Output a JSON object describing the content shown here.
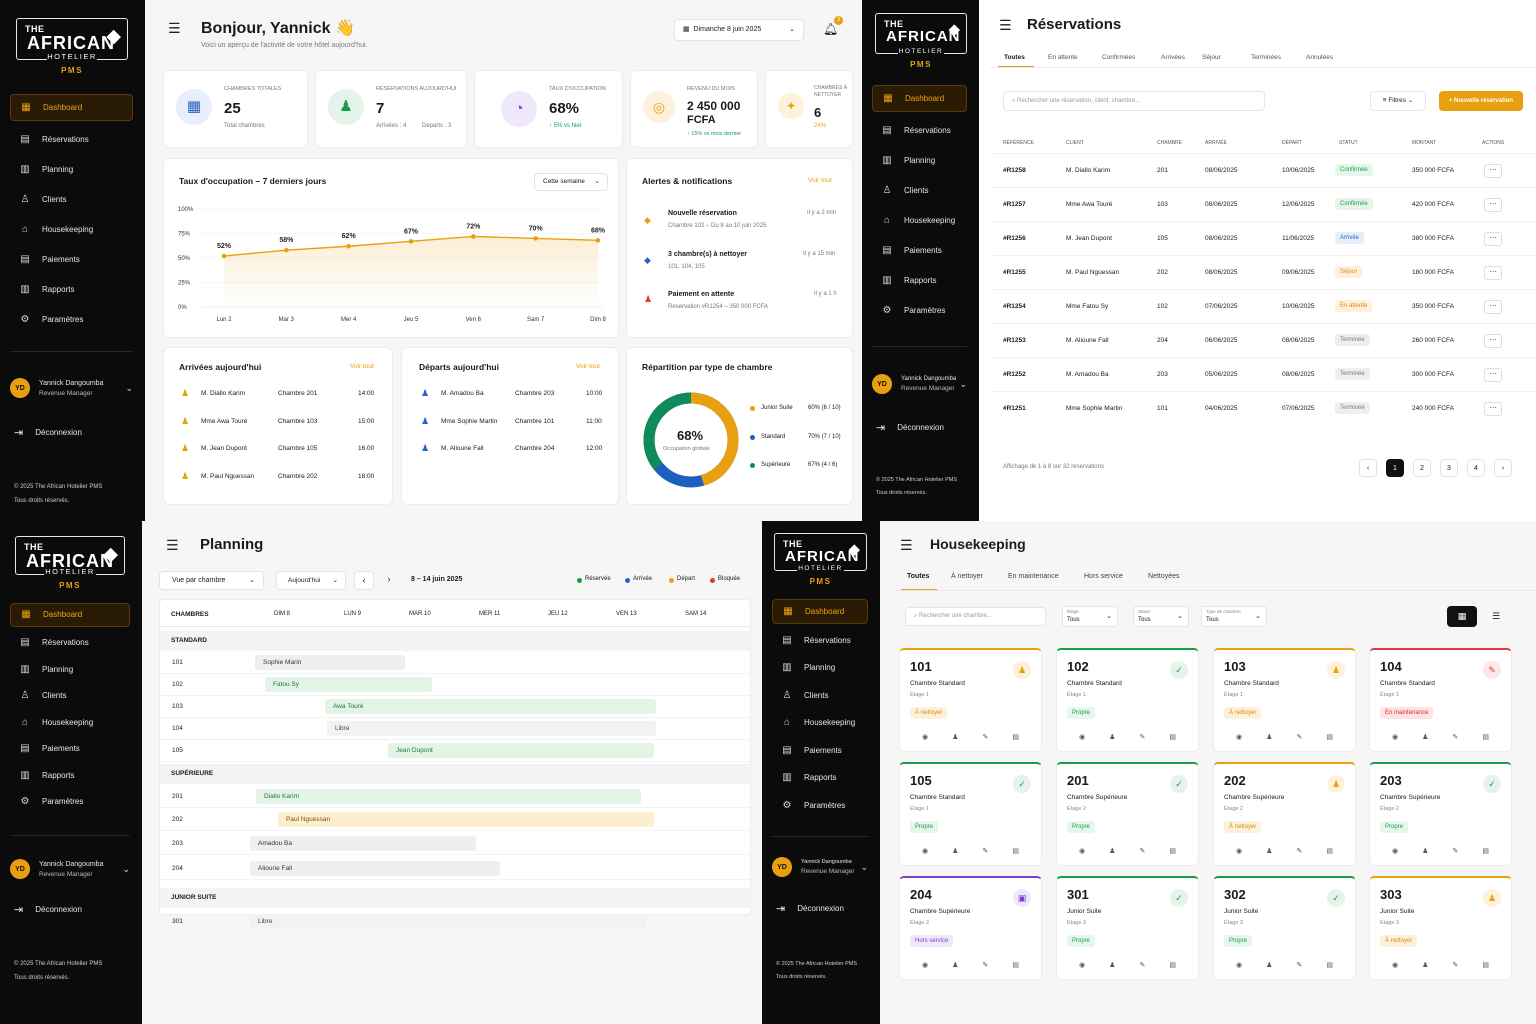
{
  "brand": {
    "the": "THE",
    "african": "AFRICAN",
    "hotelier": "HOTELIER",
    "pms": "PMS",
    "map_icon": "africa-map"
  },
  "nav": [
    "Dashboard",
    "Réservations",
    "Planning",
    "Clients",
    "Housekeeping",
    "Paiements",
    "Rapports",
    "Paramètres"
  ],
  "user": {
    "initials": "YD",
    "name": "Yannick Dangoumba",
    "role": "Revenue Manager"
  },
  "logout": "Déconnexion",
  "footer": {
    "line1": "© 2025 The African Hotelier PMS",
    "line2": "Tous droits réservés."
  },
  "colors": {
    "accent": "#e8a010",
    "success": "#1a9a4b",
    "info": "#2a61c9",
    "danger": "#e03a3a"
  },
  "dashboard": {
    "greeting": "Bonjour, Yannick 👋",
    "subtitle": "Voici un aperçu de l'activité de votre hôtel aujourd'hui.",
    "date": "Dimanche 8 juin 2025",
    "notif_count": "3",
    "stats": [
      {
        "label": "CHAMBRES TOTALES",
        "value": "25",
        "sub": "Total chambres",
        "icon": "building-icon"
      },
      {
        "label": "RÉSERVATIONS AUJOURD'HUI",
        "value": "7",
        "sub1": "Arrivées : 4",
        "sub2": "Departs : 3",
        "icon": "reception-icon"
      },
      {
        "label": "TAUX D'OCCUPATION",
        "value": "68%",
        "sub": "↑ 5% vs hier",
        "icon": "pie-icon"
      },
      {
        "label": "REVENU DU MOIS",
        "value": "2 450 000",
        "value2": "FCFA",
        "sub": "↑ 15% vs mois dernier",
        "icon": "coins-icon"
      },
      {
        "label": "CHAMBRES À",
        "label2": "NETTOYER",
        "value": "6",
        "sub": "24%",
        "icon": "cleaning-icon"
      }
    ],
    "occupancy": {
      "title": "Taux d'occupation – 7 derniers jours",
      "filter": "Cette semaine"
    },
    "alerts": {
      "title": "Alertes & notifications",
      "link": "Voir tout",
      "items": [
        {
          "title": "Nouvelle réservation",
          "sub": "Chambre 102 – Du 8 au 10 juin 2025",
          "time": "Il y a 2 min"
        },
        {
          "title": "3 chambre(s) à nettoyer",
          "sub": "101, 104, 105",
          "time": "Il y a 15 min"
        },
        {
          "title": "Paiement en attente",
          "sub": "Réservation #R1254 – 350 000 FCFA",
          "time": "Il y a 1 h"
        }
      ]
    },
    "arrivals": {
      "title": "Arrivées aujourd'hui",
      "link": "Voir tout",
      "rows": [
        {
          "name": "M. Diallo Karim",
          "room": "Chambre 201",
          "time": "14:00"
        },
        {
          "name": "Mme Awa Touré",
          "room": "Chambre 103",
          "time": "15:00"
        },
        {
          "name": "M. Jean Dupont",
          "room": "Chambre 105",
          "time": "16:00"
        },
        {
          "name": "M. Paul Nguessan",
          "room": "Chambre 202",
          "time": "18:00"
        }
      ]
    },
    "departures": {
      "title": "Départs aujourd'hui",
      "link": "Voir tout",
      "rows": [
        {
          "name": "M. Amadou Ba",
          "room": "Chambre 203",
          "time": "10:00"
        },
        {
          "name": "Mme Sophie Martin",
          "room": "Chambre 101",
          "time": "11:00"
        },
        {
          "name": "M. Alioune Fall",
          "room": "Chambre 204",
          "time": "12:00"
        }
      ]
    },
    "room_split": {
      "title": "Répartition par type de chambre",
      "center": "68%",
      "center_sub": "Occupation globale",
      "items": [
        {
          "name": "Junior Suite",
          "val": "60% (6 / 10)",
          "color": "#e8a010"
        },
        {
          "name": "Standard",
          "val": "70% (7 / 10)",
          "color": "#1f5fbf"
        },
        {
          "name": "Supérieure",
          "val": "67% (4 / 6)",
          "color": "#0f8a5a"
        }
      ]
    }
  },
  "chart_data": {
    "type": "line",
    "title": "Taux d'occupation – 7 derniers jours",
    "categories": [
      "Lun 2",
      "Mar 3",
      "Mer 4",
      "Jeu 5",
      "Ven 6",
      "Sam 7",
      "Dim 8"
    ],
    "values": [
      52,
      58,
      62,
      67,
      72,
      70,
      68
    ],
    "labels": [
      "52%",
      "58%",
      "62%",
      "67%",
      "72%",
      "70%",
      "68%"
    ],
    "yticks": [
      "100%",
      "75%",
      "50%",
      "25%",
      "0%"
    ],
    "ylim": [
      0,
      100
    ]
  },
  "reservations": {
    "title": "Réservations",
    "tabs": [
      "Toutes",
      "En attente",
      "Confirmées",
      "Arrivées",
      "Séjour",
      "Terminées",
      "Annulées"
    ],
    "search_placeholder": "Rechercher une réservation, client, chambre...",
    "filters": "Filtres",
    "new": "+ Nouvelle réservation",
    "columns": [
      "RÉFÉRENCE",
      "CLIENT",
      "CHAMBRE",
      "ARRIVÉE",
      "DÉPART",
      "STATUT",
      "MONTANT",
      "ACTIONS"
    ],
    "rows": [
      {
        "ref": "#R1258",
        "client": "M. Diallo Karim",
        "room": "201",
        "arr": "08/06/2025",
        "dep": "10/06/2025",
        "status": "Confirmée",
        "cls": "st-conf",
        "amount": "350 000 FCFA"
      },
      {
        "ref": "#R1257",
        "client": "Mme Awa Touré",
        "room": "103",
        "arr": "08/06/2025",
        "dep": "12/06/2025",
        "status": "Confirmée",
        "cls": "st-conf",
        "amount": "420 000 FCFA"
      },
      {
        "ref": "#R1256",
        "client": "M. Jean Dupont",
        "room": "105",
        "arr": "08/06/2025",
        "dep": "11/06/2025",
        "status": "Arrivée",
        "cls": "st-arr",
        "amount": "380 000 FCFA"
      },
      {
        "ref": "#R1255",
        "client": "M. Paul Nguessan",
        "room": "202",
        "arr": "08/06/2025",
        "dep": "09/06/2025",
        "status": "Séjour",
        "cls": "st-sej",
        "amount": "180 000 FCFA"
      },
      {
        "ref": "#R1254",
        "client": "Mme Fatou Sy",
        "room": "102",
        "arr": "07/06/2025",
        "dep": "10/06/2025",
        "status": "En attente",
        "cls": "st-att",
        "amount": "350 000 FCFA"
      },
      {
        "ref": "#R1253",
        "client": "M. Alioune Fall",
        "room": "204",
        "arr": "06/06/2025",
        "dep": "08/06/2025",
        "status": "Terminée",
        "cls": "st-term",
        "amount": "260 000 FCFA"
      },
      {
        "ref": "#R1252",
        "client": "M. Amadou Ba",
        "room": "203",
        "arr": "05/06/2025",
        "dep": "08/06/2025",
        "status": "Terminée",
        "cls": "st-term",
        "amount": "300 000 FCFA"
      },
      {
        "ref": "#R1251",
        "client": "Mme Sophie Martin",
        "room": "101",
        "arr": "04/06/2025",
        "dep": "07/06/2025",
        "status": "Terminée",
        "cls": "st-term",
        "amount": "240 000 FCFA"
      }
    ],
    "footer": "Affichage de 1 à 8 sur 32 réservations",
    "pages": [
      "1",
      "2",
      "3",
      "4"
    ]
  },
  "planning": {
    "title": "Planning",
    "view": "Vue par chambre",
    "today": "Aujourd'hui",
    "range": "8 – 14 juin 2025",
    "legend": [
      {
        "name": "Réservée",
        "color": "#1a9a4b"
      },
      {
        "name": "Arrivée",
        "color": "#2a61c9"
      },
      {
        "name": "Départ",
        "color": "#e8a010"
      },
      {
        "name": "Bloquée",
        "color": "#e03a3a"
      }
    ],
    "columns": [
      "CHAMBRES",
      "DIM 8",
      "LUN 9",
      "MAR 10",
      "MER 11",
      "JEU 12",
      "VEN 13",
      "SAM 14"
    ],
    "groups": [
      "STANDARD",
      "SUPÉRIEURE",
      "JUNIOR SUITE"
    ],
    "rooms": [
      {
        "n": "101",
        "label": "Sophie Marin",
        "bg": "#efefef",
        "fg": "#333"
      },
      {
        "n": "102",
        "label": "Fatou Sy",
        "bg": "#e3f3e6",
        "fg": "#1f7a3a"
      },
      {
        "n": "103",
        "label": "Awa Touré",
        "bg": "#e3f3e6",
        "fg": "#1f7a3a"
      },
      {
        "n": "104",
        "label": "Libre",
        "bg": "#f2f2f2",
        "fg": "#444"
      },
      {
        "n": "105",
        "label": "Jean Dupont",
        "bg": "#e3f3e6",
        "fg": "#1f7a3a"
      },
      {
        "n": "201",
        "label": "Diallo Karim",
        "bg": "#e3f3e6",
        "fg": "#1f7a3a"
      },
      {
        "n": "202",
        "label": "Paul Nguessan",
        "bg": "#fdeecd",
        "fg": "#7a5410"
      },
      {
        "n": "203",
        "label": "Amadou Ba",
        "bg": "#efefef",
        "fg": "#333"
      },
      {
        "n": "204",
        "label": "Alioune Fall",
        "bg": "#efefef",
        "fg": "#333"
      },
      {
        "n": "301",
        "label": "Libre",
        "bg": "#f2f2f2",
        "fg": "#444"
      }
    ]
  },
  "housekeeping": {
    "title": "Housekeeping",
    "tabs": [
      "Toutes",
      "À nettoyer",
      "En maintenance",
      "Hors service",
      "Nettoyées"
    ],
    "search_placeholder": "Rechercher une chambre...",
    "filters": [
      {
        "label": "Étage",
        "value": "Tous"
      },
      {
        "label": "Statut",
        "value": "Tous"
      },
      {
        "label": "Type de chambre",
        "value": "Tous"
      }
    ],
    "rooms": [
      {
        "n": "101",
        "type": "Chambre Standard",
        "floor": "Étage 1",
        "status": "À nettoyer",
        "kind": "clean"
      },
      {
        "n": "102",
        "type": "Chambre Standard",
        "floor": "Étage 1",
        "status": "Propre",
        "kind": "ok"
      },
      {
        "n": "103",
        "type": "Chambre Standard",
        "floor": "Étage 1",
        "status": "À nettoyer",
        "kind": "clean"
      },
      {
        "n": "104",
        "type": "Chambre Standard",
        "floor": "Étage 1",
        "status": "En maintenance",
        "kind": "maint"
      },
      {
        "n": "105",
        "type": "Chambre Standard",
        "floor": "Étage 1",
        "status": "Propre",
        "kind": "ok"
      },
      {
        "n": "201",
        "type": "Chambre Supérieure",
        "floor": "Étage 2",
        "status": "Propre",
        "kind": "ok"
      },
      {
        "n": "202",
        "type": "Chambre Supérieure",
        "floor": "Étage 2",
        "status": "À nettoyer",
        "kind": "clean"
      },
      {
        "n": "203",
        "type": "Chambre Supérieure",
        "floor": "Étage 2",
        "status": "Propre",
        "kind": "ok"
      },
      {
        "n": "204",
        "type": "Chambre Supérieure",
        "floor": "Étage 2",
        "status": "Hors service",
        "kind": "out"
      },
      {
        "n": "301",
        "type": "Junior Suite",
        "floor": "Étage 3",
        "status": "Propre",
        "kind": "ok"
      },
      {
        "n": "302",
        "type": "Junior Suite",
        "floor": "Étage 3",
        "status": "Propre",
        "kind": "ok"
      },
      {
        "n": "303",
        "type": "Junior Suite",
        "floor": "Étage 3",
        "status": "À nettoyer",
        "kind": "clean"
      }
    ]
  }
}
